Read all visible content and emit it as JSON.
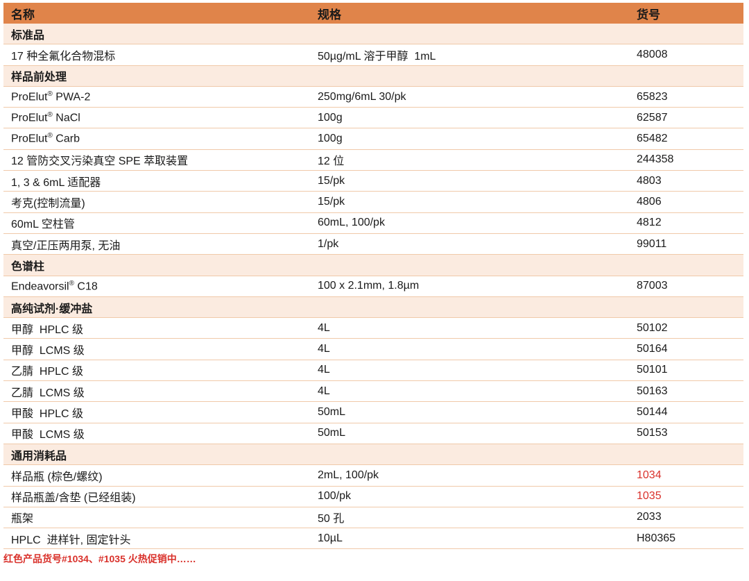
{
  "header": {
    "name": "名称",
    "spec": "规格",
    "code": "货号"
  },
  "sections": [
    {
      "title": "标准品",
      "items": [
        {
          "name": "17 种全氟化合物混标",
          "spec": "50µg/mL 溶于甲醇  1mL",
          "code": "48008"
        }
      ]
    },
    {
      "title": "样品前处理",
      "items": [
        {
          "name": "ProElut",
          "sup": "®",
          "suffix": " PWA-2",
          "spec": "250mg/6mL 30/pk",
          "code": "65823"
        },
        {
          "name": "ProElut",
          "sup": "®",
          "suffix": " NaCl",
          "spec": "100g",
          "code": "62587"
        },
        {
          "name": "ProElut",
          "sup": "®",
          "suffix": " Carb",
          "spec": "100g",
          "code": "65482"
        },
        {
          "name": "12 管防交叉污染真空 SPE 萃取装置",
          "spec": "12 位",
          "code": "244358"
        },
        {
          "name": "1, 3 & 6mL 适配器",
          "spec": "15/pk",
          "code": "4803"
        },
        {
          "name": "考克(控制流量)",
          "spec": "15/pk",
          "code": "4806"
        },
        {
          "name": "60mL 空柱管",
          "spec": "60mL, 100/pk",
          "code": "4812"
        },
        {
          "name": "真空/正压两用泵, 无油",
          "spec": "1/pk",
          "code": "99011"
        }
      ]
    },
    {
      "title": "色谱柱",
      "items": [
        {
          "name": "Endeavorsil",
          "sup": "®",
          "suffix": " C18",
          "spec": "100 x 2.1mm, 1.8µm",
          "code": "87003"
        }
      ]
    },
    {
      "title": "高纯试剂·缓冲盐",
      "items": [
        {
          "name": "甲醇  HPLC 级",
          "spec": "4L",
          "code": "50102"
        },
        {
          "name": "甲醇  LCMS 级",
          "spec": "4L",
          "code": "50164"
        },
        {
          "name": "乙腈  HPLC 级",
          "spec": "4L",
          "code": "50101"
        },
        {
          "name": "乙腈  LCMS 级",
          "spec": "4L",
          "code": "50163"
        },
        {
          "name": "甲酸  HPLC 级",
          "spec": "50mL",
          "code": "50144"
        },
        {
          "name": "甲酸  LCMS 级",
          "spec": "50mL",
          "code": "50153"
        }
      ]
    },
    {
      "title": "通用消耗品",
      "items": [
        {
          "name": "样品瓶 (棕色/螺纹)",
          "spec": "2mL, 100/pk",
          "code": "1034",
          "highlight": true
        },
        {
          "name": "样品瓶盖/含垫 (已经组装)",
          "spec": "100/pk",
          "code": "1035",
          "highlight": true
        },
        {
          "name": "瓶架",
          "spec": "50 孔",
          "code": "2033"
        },
        {
          "name": "HPLC  进样针, 固定针头",
          "spec": "10µL",
          "code": "H80365"
        }
      ]
    }
  ],
  "note": "红色产品货号#1034、#1035 火热促销中……",
  "colors": {
    "header": "#e0844a",
    "category": "#fbebe0",
    "highlight": "#d9312b"
  }
}
